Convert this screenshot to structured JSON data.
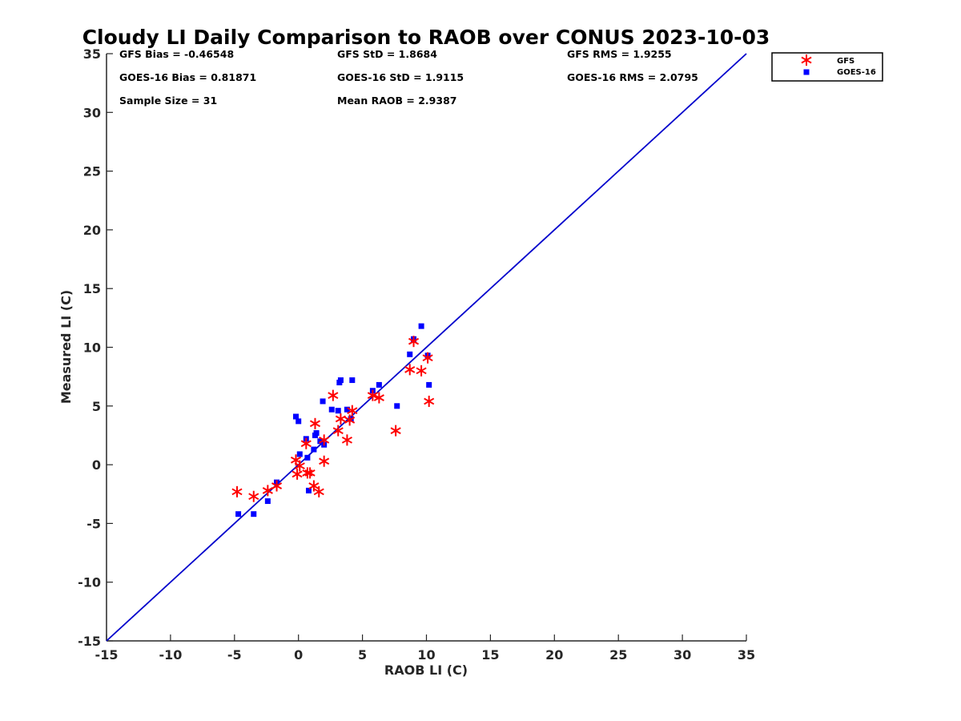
{
  "chart_data": {
    "type": "scatter",
    "title": "Cloudy LI Daily Comparison to RAOB over CONUS 2023-10-03",
    "xlabel": "RAOB LI (C)",
    "ylabel": "Measured LI (C)",
    "xlim": [
      -15,
      35
    ],
    "ylim": [
      -15,
      35
    ],
    "xticks": [
      "-15",
      "-10",
      "-5",
      "0",
      "5",
      "10",
      "15",
      "20",
      "25",
      "30",
      "35"
    ],
    "yticks": [
      "-15",
      "-10",
      "-5",
      "0",
      "5",
      "10",
      "15",
      "20",
      "25",
      "30",
      "35"
    ],
    "grid": false,
    "legend_position": "outside top-right",
    "reference_line": {
      "x": [
        -15,
        35
      ],
      "y": [
        -15,
        35
      ],
      "color": "#0000cc"
    },
    "stats": [
      [
        "GFS Bias = -0.46548",
        "GFS StD = 1.8684",
        "GFS RMS = 1.9255"
      ],
      [
        "GOES-16 Bias = 0.81871",
        "GOES-16 StD = 1.9115",
        "GOES-16 RMS = 2.0795"
      ],
      [
        "Sample Size = 31",
        "Mean RAOB = 2.9387",
        ""
      ]
    ],
    "series": [
      {
        "name": "GFS",
        "marker": "asterisk",
        "color": "#ff0000",
        "x": [
          -4.8,
          -3.5,
          -2.4,
          -1.7,
          -0.2,
          -0.1,
          0.1,
          0.6,
          0.7,
          0.9,
          1.2,
          1.3,
          1.6,
          2.0,
          2.0,
          2.7,
          3.1,
          3.3,
          3.8,
          4.0,
          4.2,
          5.8,
          6.3,
          7.6,
          8.7,
          9.0,
          9.6,
          10.1,
          10.2
        ],
        "y": [
          -2.3,
          -2.7,
          -2.2,
          -1.8,
          0.4,
          -0.8,
          -0.1,
          1.8,
          -0.7,
          -0.7,
          -1.8,
          3.5,
          -2.3,
          2.1,
          0.3,
          5.9,
          2.9,
          3.9,
          2.1,
          3.8,
          4.6,
          5.9,
          5.7,
          2.9,
          8.1,
          10.5,
          8.0,
          9.1,
          5.4
        ]
      },
      {
        "name": "GOES-16",
        "marker": "square",
        "color": "#0000ff",
        "x": [
          -4.7,
          -3.5,
          -2.4,
          -1.7,
          -0.2,
          0.0,
          0.1,
          0.6,
          0.7,
          0.8,
          1.2,
          1.3,
          1.4,
          1.7,
          1.9,
          2.0,
          2.6,
          3.1,
          3.2,
          3.3,
          3.8,
          4.1,
          4.2,
          5.8,
          6.3,
          7.7,
          8.7,
          9.0,
          9.6,
          10.1,
          10.2
        ],
        "y": [
          -4.2,
          -4.2,
          -3.1,
          -1.5,
          4.1,
          3.7,
          0.9,
          2.2,
          0.6,
          -2.2,
          1.3,
          2.5,
          2.7,
          2.0,
          5.4,
          1.7,
          4.7,
          4.6,
          7.0,
          7.2,
          4.7,
          3.9,
          7.2,
          6.3,
          6.8,
          5.0,
          9.4,
          10.7,
          11.8,
          9.3,
          6.8
        ]
      }
    ]
  }
}
